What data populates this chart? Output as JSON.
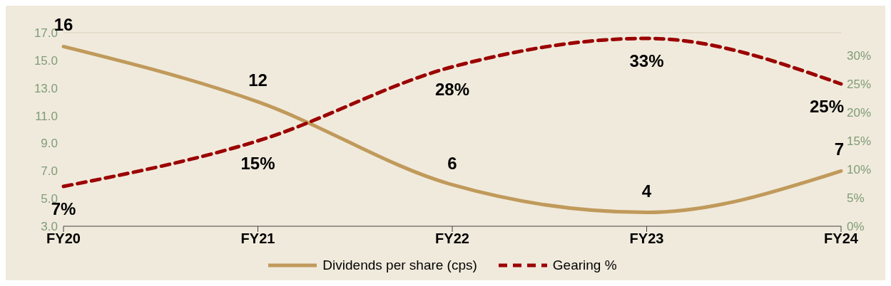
{
  "chart_data": {
    "type": "line",
    "categories": [
      "FY20",
      "FY21",
      "FY22",
      "FY23",
      "FY24"
    ],
    "series": [
      {
        "name": "Dividends per share (cps)",
        "color": "#c09a5b",
        "values": [
          16,
          12,
          6,
          4,
          7
        ],
        "value_labels": [
          "16",
          "12",
          "6",
          "4",
          "7"
        ],
        "line_style": "solid"
      },
      {
        "name": "Gearing %",
        "color": "#9b0000",
        "values": [
          7,
          15,
          28,
          33,
          25
        ],
        "value_labels": [
          "7%",
          "15%",
          "28%",
          "33%",
          "25%"
        ],
        "axis": "y2",
        "line_style": "dashed"
      }
    ],
    "ylim": [
      3,
      17
    ],
    "yticks": [
      {
        "value": 3,
        "label": "3.0"
      },
      {
        "value": 5,
        "label": "5.0"
      },
      {
        "value": 7,
        "label": "7.0"
      },
      {
        "value": 9,
        "label": "9.0"
      },
      {
        "value": 11,
        "label": "11.0"
      },
      {
        "value": 13,
        "label": "13.0"
      },
      {
        "value": 15,
        "label": "15.0"
      },
      {
        "value": 17,
        "label": "17.0"
      }
    ],
    "y2lim": [
      0,
      34
    ],
    "y2ticks": [
      {
        "value": 0,
        "label": "0%"
      },
      {
        "value": 5,
        "label": "5%"
      },
      {
        "value": 10,
        "label": "10%"
      },
      {
        "value": 15,
        "label": "15%"
      },
      {
        "value": 20,
        "label": "20%"
      },
      {
        "value": 25,
        "label": "25%"
      },
      {
        "value": 30,
        "label": "30%"
      }
    ],
    "grid": false,
    "legend": "bottom",
    "marker": "none"
  }
}
